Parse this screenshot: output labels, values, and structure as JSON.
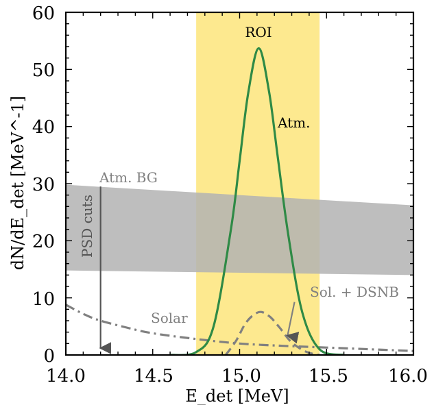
{
  "chart_data": {
    "type": "line",
    "xlabel": "E_det [MeV]",
    "ylabel": "dN/dE_det [MeV^-1]",
    "xlim": [
      14.0,
      16.0
    ],
    "ylim": [
      0,
      60
    ],
    "x_ticks": [
      "14.0",
      "14.5",
      "15.0",
      "15.5",
      "16.0"
    ],
    "y_ticks": [
      "0",
      "10",
      "20",
      "30",
      "40",
      "50",
      "60"
    ],
    "grid": false,
    "roi": {
      "label": "ROI",
      "x_range": [
        14.75,
        15.46
      ],
      "color": "#fde98f"
    },
    "atm_bg": {
      "label": "Atm. BG",
      "color": "#b3b3b3",
      "x": [
        14.0,
        16.0
      ],
      "upper": [
        29.8,
        26.2
      ],
      "lower": [
        14.8,
        14.0
      ]
    },
    "psd_cuts": {
      "label": "PSD cuts",
      "x": 14.2,
      "from_y": 29.5,
      "to_y": 0
    },
    "series": [
      {
        "name": "Atm.",
        "style": "solid",
        "color": "#2f8a46",
        "x": [
          14.6,
          14.75,
          14.85,
          14.95,
          15.0,
          15.05,
          15.11,
          15.17,
          15.22,
          15.28,
          15.36,
          15.46,
          15.6
        ],
        "y": [
          0.0,
          0.5,
          5.0,
          22.0,
          34.0,
          46.0,
          53.7,
          46.0,
          34.5,
          21.0,
          7.5,
          1.0,
          0.0
        ]
      },
      {
        "name": "Sol. + DSNB",
        "style": "dashed",
        "color": "#808080",
        "x": [
          14.92,
          14.98,
          15.04,
          15.11,
          15.17,
          15.23,
          15.29,
          15.36,
          15.42,
          15.46
        ],
        "y": [
          0.0,
          2.5,
          5.8,
          7.5,
          6.8,
          4.8,
          2.5,
          0.9,
          0.2,
          0.0
        ]
      },
      {
        "name": "Solar",
        "style": "dashdot",
        "color": "#808080",
        "x": [
          14.0,
          14.1,
          14.2,
          14.35,
          14.5,
          14.75,
          15.0,
          15.25,
          15.5,
          15.75,
          16.0
        ],
        "y": [
          8.8,
          7.2,
          6.0,
          4.8,
          3.8,
          2.8,
          2.0,
          1.6,
          1.3,
          1.0,
          0.7
        ]
      }
    ],
    "annotations": [
      {
        "text": "ROI",
        "x": 15.1,
        "y": 55.5
      },
      {
        "text": "Atm.",
        "x": 15.2,
        "y": 40.0
      },
      {
        "text": "Atm. BG",
        "x": 14.05,
        "y": 30.5
      },
      {
        "text": "Solar",
        "x": 14.4,
        "y": 5.5
      },
      {
        "text": "Sol. + DSNB",
        "x": 15.3,
        "y": 10.0
      }
    ]
  }
}
